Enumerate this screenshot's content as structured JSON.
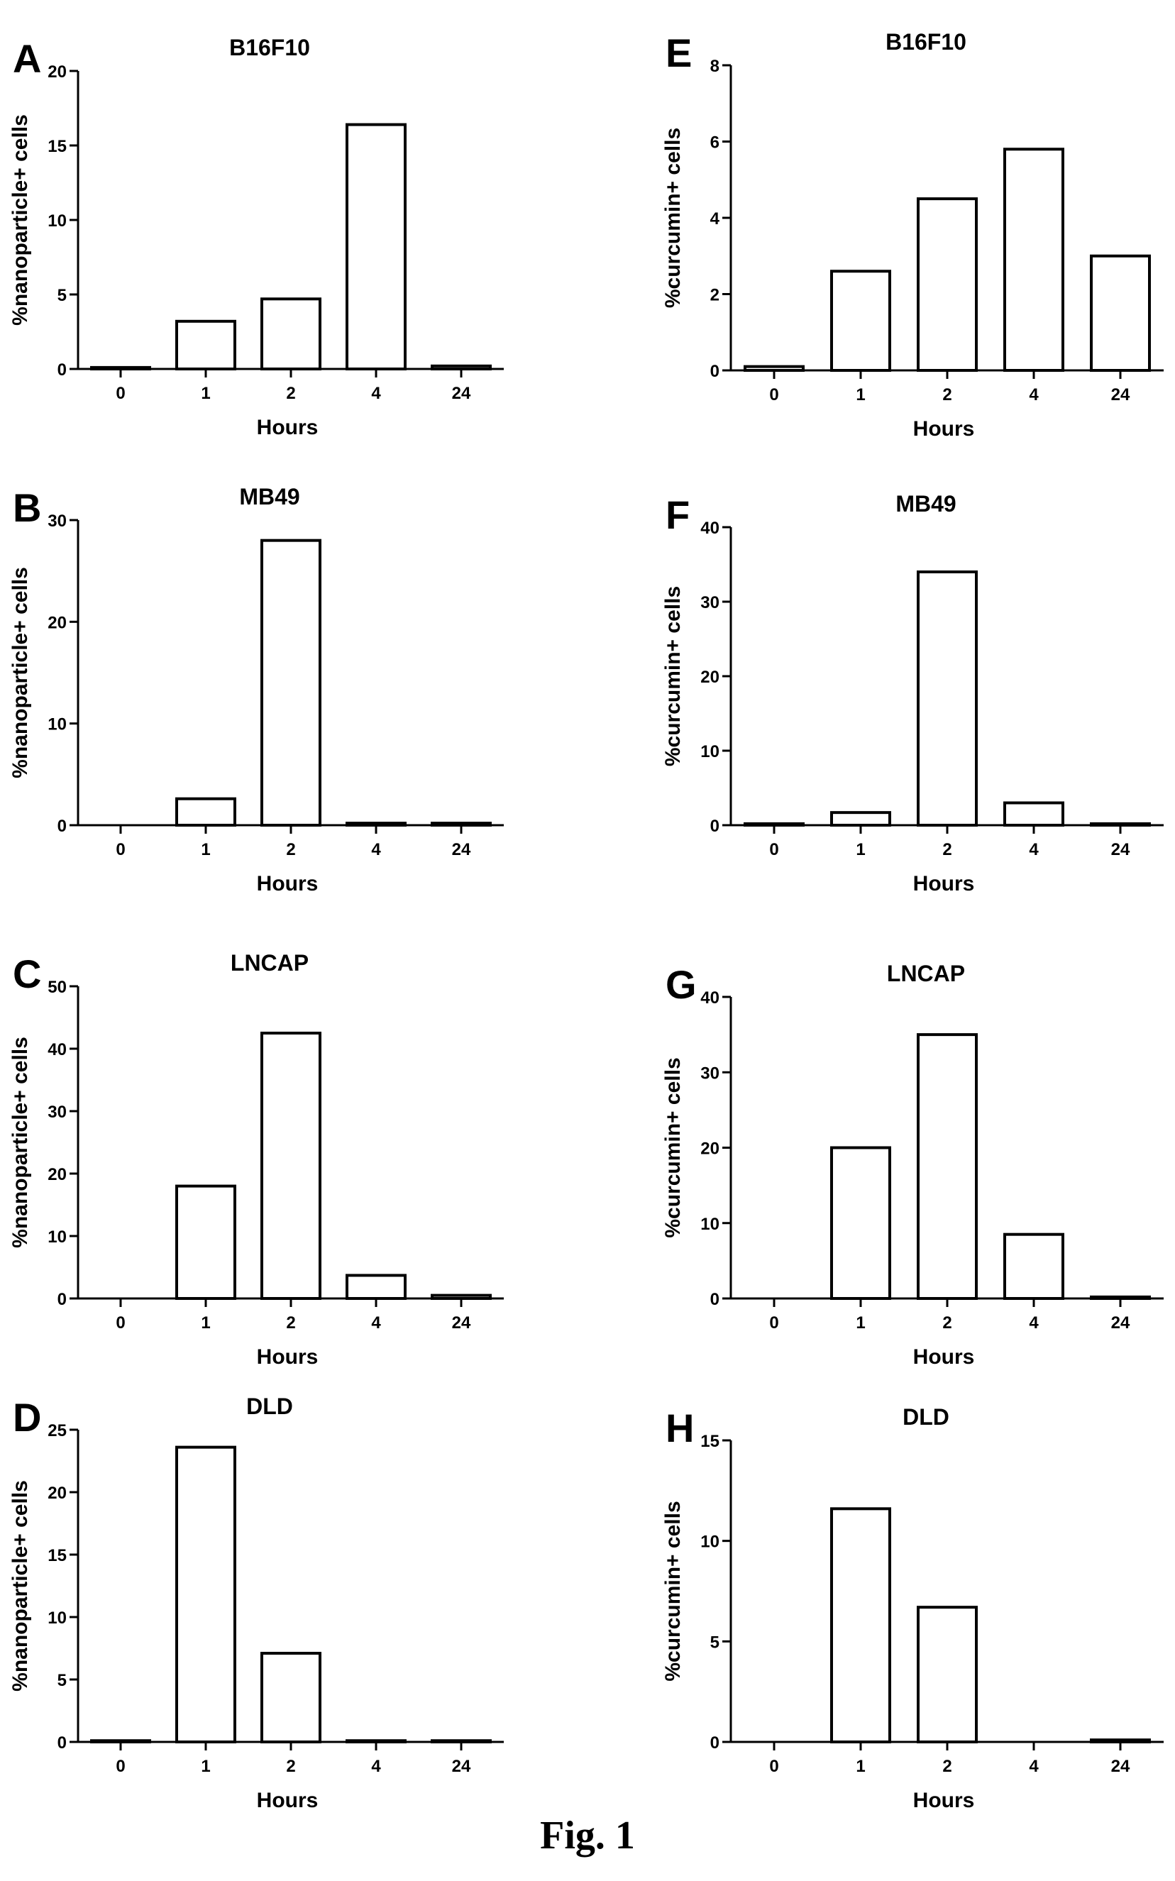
{
  "figure_caption": "Fig. 1",
  "chart_data": [
    {
      "panel": "A",
      "type": "bar",
      "title": "B16F10",
      "xlabel": "Hours",
      "ylabel": "%nanoparticle+ cells",
      "categories": [
        "0",
        "1",
        "2",
        "4",
        "24"
      ],
      "values": [
        0.1,
        3.2,
        4.7,
        16.4,
        0.2
      ],
      "ylim": [
        0,
        20
      ],
      "yticks": [
        0,
        5,
        10,
        15,
        20
      ]
    },
    {
      "panel": "B",
      "type": "bar",
      "title": "MB49",
      "xlabel": "Hours",
      "ylabel": "%nanoparticle+ cells",
      "categories": [
        "0",
        "1",
        "2",
        "4",
        "24"
      ],
      "values": [
        0,
        2.6,
        28,
        0.2,
        0.2
      ],
      "ylim": [
        0,
        30
      ],
      "yticks": [
        0,
        10,
        20,
        30
      ]
    },
    {
      "panel": "C",
      "type": "bar",
      "title": "LNCAP",
      "xlabel": "Hours",
      "ylabel": "%nanoparticle+ cells",
      "categories": [
        "0",
        "1",
        "2",
        "4",
        "24"
      ],
      "values": [
        0,
        18,
        42.5,
        3.7,
        0.5
      ],
      "ylim": [
        0,
        50
      ],
      "yticks": [
        0,
        10,
        20,
        30,
        40,
        50
      ]
    },
    {
      "panel": "D",
      "type": "bar",
      "title": "DLD",
      "xlabel": "Hours",
      "ylabel": "%nanoparticle+ cells",
      "categories": [
        "0",
        "1",
        "2",
        "4",
        "24"
      ],
      "values": [
        0.1,
        23.6,
        7.1,
        0.1,
        0.1
      ],
      "ylim": [
        0,
        25
      ],
      "yticks": [
        0,
        5,
        10,
        15,
        20,
        25
      ]
    },
    {
      "panel": "E",
      "type": "bar",
      "title": "B16F10",
      "xlabel": "Hours",
      "ylabel": "%curcumin+ cells",
      "categories": [
        "0",
        "1",
        "2",
        "4",
        "24"
      ],
      "values": [
        0.1,
        2.6,
        4.5,
        5.8,
        3.0
      ],
      "ylim": [
        0,
        8
      ],
      "yticks": [
        0,
        2,
        4,
        6,
        8
      ]
    },
    {
      "panel": "F",
      "type": "bar",
      "title": "MB49",
      "xlabel": "Hours",
      "ylabel": "%curcumin+ cells",
      "categories": [
        "0",
        "1",
        "2",
        "4",
        "24"
      ],
      "values": [
        0.2,
        1.7,
        34,
        3.0,
        0.2
      ],
      "ylim": [
        0,
        40
      ],
      "yticks": [
        0,
        10,
        20,
        30,
        40
      ]
    },
    {
      "panel": "G",
      "type": "bar",
      "title": "LNCAP",
      "xlabel": "Hours",
      "ylabel": "%curcumin+ cells",
      "categories": [
        "0",
        "1",
        "2",
        "4",
        "24"
      ],
      "values": [
        0,
        20,
        35,
        8.5,
        0.2
      ],
      "ylim": [
        0,
        40
      ],
      "yticks": [
        0,
        10,
        20,
        30,
        40
      ]
    },
    {
      "panel": "H",
      "type": "bar",
      "title": "DLD",
      "xlabel": "Hours",
      "ylabel": "%curcumin+ cells",
      "categories": [
        "0",
        "1",
        "2",
        "4",
        "24"
      ],
      "values": [
        0,
        11.6,
        6.7,
        0,
        0.1
      ],
      "ylim": [
        0,
        15
      ],
      "yticks": [
        0,
        5,
        10,
        15
      ]
    }
  ]
}
